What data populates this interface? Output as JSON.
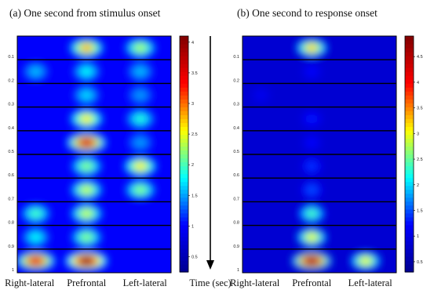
{
  "chart_data": [
    {
      "type": "heatmap",
      "title": "(a) One second from stimulus onset",
      "x_tick_labels": [
        "Right-lateral",
        "Prefrontal",
        "Left-lateral"
      ],
      "y_tick_labels": [
        "0.1",
        "0.2",
        "0.3",
        "0.4",
        "0.5",
        "0.6",
        "0.7",
        "0.8",
        "0.9",
        "1"
      ],
      "ylim": [
        0,
        1
      ],
      "colorbar": {
        "range": [
          0.25,
          4.1
        ],
        "ticks": [
          "0.5",
          "1",
          "1.5",
          "2",
          "2.5",
          "3",
          "3.5",
          "4"
        ]
      },
      "colormap": [
        "#00008f",
        "#0000ff",
        "#00ffff",
        "#ffff00",
        "#ff0000",
        "#800000"
      ],
      "rows": [
        {
          "time": 0.1,
          "hotspots": [
            {
              "region": "Prefrontal",
              "value": 2.8
            },
            {
              "region": "Left-lateral",
              "value": 2.3
            }
          ]
        },
        {
          "time": 0.2,
          "hotspots": [
            {
              "region": "Right-lateral",
              "value": 1.6
            },
            {
              "region": "Prefrontal",
              "value": 1.8
            },
            {
              "region": "Left-lateral",
              "value": 1.6
            }
          ]
        },
        {
          "time": 0.3,
          "hotspots": [
            {
              "region": "Prefrontal",
              "value": 1.7
            },
            {
              "region": "Left-lateral",
              "value": 1.5
            }
          ]
        },
        {
          "time": 0.4,
          "hotspots": [
            {
              "region": "Prefrontal",
              "value": 2.6
            },
            {
              "region": "Left-lateral",
              "value": 1.9
            }
          ]
        },
        {
          "time": 0.5,
          "hotspots": [
            {
              "region": "Prefrontal",
              "value": 3.6
            },
            {
              "region": "Left-lateral",
              "value": 1.5
            }
          ]
        },
        {
          "time": 0.6,
          "hotspots": [
            {
              "region": "Prefrontal",
              "value": 2.2
            },
            {
              "region": "Left-lateral",
              "value": 2.6
            }
          ]
        },
        {
          "time": 0.7,
          "hotspots": [
            {
              "region": "Prefrontal",
              "value": 2.4
            },
            {
              "region": "Left-lateral",
              "value": 2.2
            }
          ]
        },
        {
          "time": 0.8,
          "hotspots": [
            {
              "region": "Right-lateral",
              "value": 2.0
            },
            {
              "region": "Prefrontal",
              "value": 2.4
            }
          ]
        },
        {
          "time": 0.9,
          "hotspots": [
            {
              "region": "Right-lateral",
              "value": 1.8
            },
            {
              "region": "Prefrontal",
              "value": 2.2
            }
          ]
        },
        {
          "time": 1.0,
          "hotspots": [
            {
              "region": "Right-lateral",
              "value": 3.5
            },
            {
              "region": "Prefrontal",
              "value": 4.0
            }
          ]
        }
      ]
    },
    {
      "type": "heatmap",
      "title": "(b) One second to response onset",
      "x_tick_labels": [
        "Right-lateral",
        "Prefrontal",
        "Left-lateral"
      ],
      "y_tick_labels": [
        "0.1",
        "0.2",
        "0.3",
        "0.4",
        "0.5",
        "0.6",
        "0.7",
        "0.8",
        "0.9",
        "1"
      ],
      "ylim": [
        0,
        1
      ],
      "colorbar": {
        "range": [
          0.3,
          4.9
        ],
        "ticks": [
          "0.5",
          "1",
          "1.5",
          "2",
          "2.5",
          "3",
          "3.5",
          "4",
          "4.5"
        ]
      },
      "colormap": [
        "#00008f",
        "#0000ff",
        "#00ffff",
        "#ffff00",
        "#ff0000",
        "#800000"
      ],
      "rows": [
        {
          "time": 0.1,
          "hotspots": [
            {
              "region": "Prefrontal",
              "value": 3.2
            }
          ]
        },
        {
          "time": 0.2,
          "hotspots": [
            {
              "region": "Prefrontal",
              "value": 1.2
            }
          ]
        },
        {
          "time": 0.3,
          "hotspots": [
            {
              "region": "Right-lateral",
              "value": 1.1
            }
          ]
        },
        {
          "time": 0.4,
          "hotspots": [
            {
              "region": "Prefrontal",
              "value": 1.3
            }
          ]
        },
        {
          "time": 0.5,
          "hotspots": [
            {
              "region": "Prefrontal",
              "value": 1.2
            }
          ]
        },
        {
          "time": 0.6,
          "hotspots": [
            {
              "region": "Prefrontal",
              "value": 1.4
            }
          ]
        },
        {
          "time": 0.7,
          "hotspots": [
            {
              "region": "Prefrontal",
              "value": 1.5
            }
          ]
        },
        {
          "time": 0.8,
          "hotspots": [
            {
              "region": "Prefrontal",
              "value": 2.4
            }
          ]
        },
        {
          "time": 0.9,
          "hotspots": [
            {
              "region": "Prefrontal",
              "value": 3.0
            }
          ]
        },
        {
          "time": 1.0,
          "hotspots": [
            {
              "region": "Prefrontal",
              "value": 4.6
            },
            {
              "region": "Left-lateral",
              "value": 3.0
            }
          ]
        }
      ]
    }
  ],
  "time_axis_label": "Time (sec)"
}
